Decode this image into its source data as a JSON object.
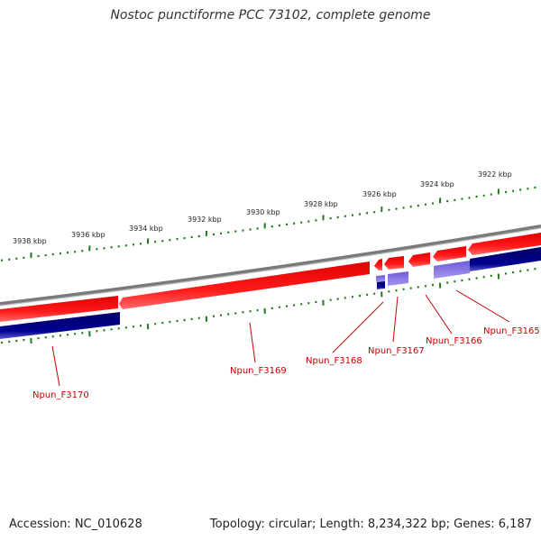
{
  "title": "Nostoc punctiforme PCC 73102, complete genome",
  "footer": {
    "accession": "Accession: NC_010628",
    "summary": "Topology: circular; Length: 8,234,322 bp; Genes: 6,187"
  },
  "colors": {
    "forward_gene": "#ff0000",
    "reverse_gene": "#000080",
    "reverse_gene_light": "#7b68ee",
    "backbone": "#808080",
    "ticks": "#1f7a1f",
    "labels": "#cc0000"
  },
  "scale_ticks": [
    {
      "label": "3938 kbp"
    },
    {
      "label": "3936 kbp"
    },
    {
      "label": "3934 kbp"
    },
    {
      "label": "3932 kbp"
    },
    {
      "label": "3930 kbp"
    },
    {
      "label": "3928 kbp"
    },
    {
      "label": "3926 kbp"
    },
    {
      "label": "3924 kbp"
    },
    {
      "label": "3922 kbp"
    }
  ],
  "genes": [
    {
      "label": "Npun_F3170"
    },
    {
      "label": "Npun_F3169"
    },
    {
      "label": "Npun_F3168"
    },
    {
      "label": "Npun_F3167"
    },
    {
      "label": "Npun_F3166"
    },
    {
      "label": "Npun_F3165"
    }
  ]
}
